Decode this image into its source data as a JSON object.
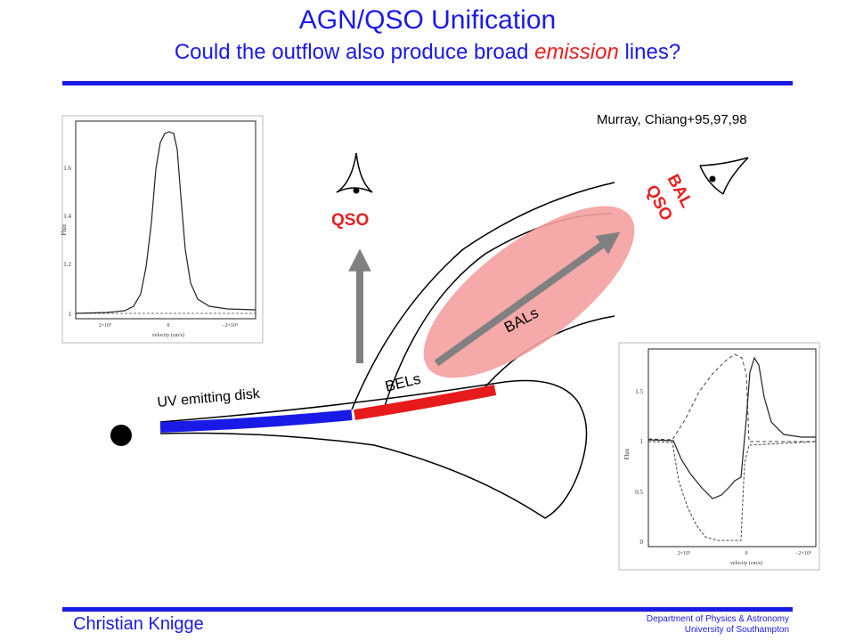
{
  "header": {
    "title": "AGN/QSO Unification",
    "subtitle_before": "Could the outflow also produce broad ",
    "subtitle_emphasis": "emission",
    "subtitle_after": " lines?"
  },
  "citation": "Murray, Chiang+95,97,98",
  "diagram": {
    "qso_label": "QSO",
    "bal_qso_line1": "BAL",
    "bal_qso_line2": "QSO",
    "bals_label": "BALs",
    "bels_label": "BELs",
    "disk_label": "UV emitting disk"
  },
  "inset_emission": {
    "y_label": "Flux",
    "y_ticks": [
      "1.6",
      "1.4",
      "1.2",
      "1"
    ],
    "x_ticks": [
      "2×10⁹",
      "0",
      "−2×10⁹"
    ],
    "x_label": "velocity (cm/s)"
  },
  "inset_absorption": {
    "y_label": "Flux",
    "y_ticks": [
      "1.5",
      "1",
      "0.5",
      "0"
    ],
    "x_ticks": [
      "2×10⁹",
      "0",
      "−2×10⁹"
    ],
    "x_label": "velocity (cm/s)"
  },
  "footer": {
    "author": "Christian Knigge",
    "department": "Department of Physics & Astronomy",
    "university": "University of Southampton"
  },
  "colors": {
    "title_blue": "#1a1ae6",
    "emphasis_red": "#e62020",
    "disk_blue": "#1a1ae6",
    "bel_red": "#e61a1a",
    "outflow_pink": "#f4a0a0",
    "arrow_gray": "#808080"
  }
}
